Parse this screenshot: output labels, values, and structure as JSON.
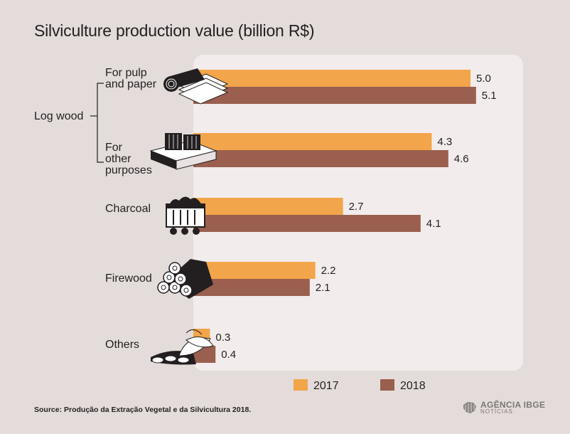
{
  "chart_data": {
    "type": "bar",
    "title": "Silviculture production value (billion R$)",
    "group_label": "Log wood",
    "categories": [
      [
        "For pulp",
        "and paper"
      ],
      [
        "For",
        "other",
        "purposes"
      ],
      [
        "Charcoal"
      ],
      [
        "Firewood"
      ],
      [
        "Others"
      ]
    ],
    "series": [
      {
        "name": "2017",
        "color": "#f2a54a",
        "values": [
          5.0,
          4.3,
          2.7,
          2.2,
          0.3
        ],
        "labels": [
          "5.0",
          "4.3",
          "2.7",
          "2.2",
          "0.3"
        ]
      },
      {
        "name": "2018",
        "color": "#9a5f4e",
        "values": [
          5.1,
          4.6,
          4.1,
          2.1,
          0.4
        ],
        "labels": [
          "5.1",
          "4.6",
          "4.1",
          "2.1",
          "0.4"
        ]
      }
    ],
    "xlim": [
      0,
      5.5
    ],
    "legend_position": "bottom",
    "icons": [
      "paper-roll-icon",
      "pallet-icon",
      "coal-cart-icon",
      "logs-icon",
      "leaves-icon"
    ]
  },
  "source": "Source: Produção da Extração Vegetal e da Silvicultura 2018.",
  "brand": {
    "name": "AGÊNCIA IBGE",
    "sub": "NOTÍCIAS"
  }
}
